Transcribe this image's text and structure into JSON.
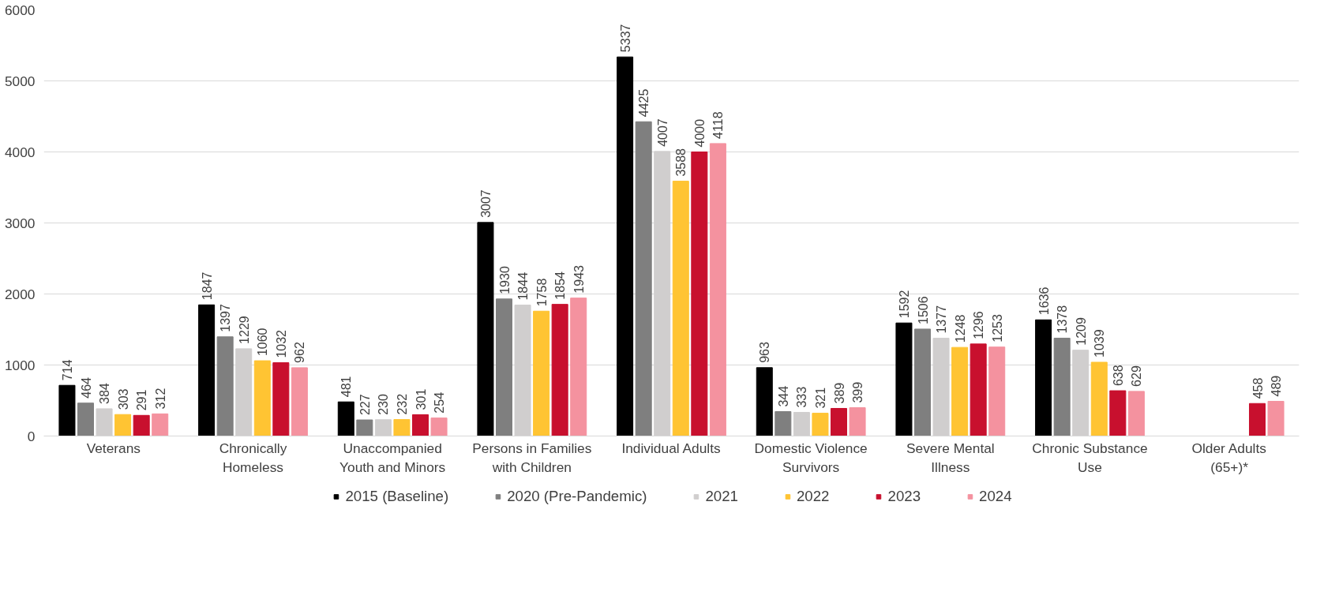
{
  "chart_data": {
    "type": "bar",
    "categories": [
      "Veterans",
      "Chronically\nHomeless",
      "Unaccompanied\nYouth and Minors",
      "Persons in Families\nwith Children",
      "Individual Adults",
      "Domestic Violence\nSurvivors",
      "Severe Mental\nIllness",
      "Chronic Substance\nUse",
      "Older Adults\n(65+)*"
    ],
    "series": [
      {
        "name": "2015 (Baseline)",
        "color": "#000000",
        "values": [
          714,
          1847,
          481,
          3007,
          5337,
          963,
          1592,
          1636,
          null
        ]
      },
      {
        "name": "2020 (Pre-Pandemic)",
        "color": "#7f7f7f",
        "values": [
          464,
          1397,
          227,
          1930,
          4425,
          344,
          1506,
          1378,
          null
        ]
      },
      {
        "name": "2021",
        "color": "#d0cece",
        "values": [
          384,
          1229,
          230,
          1844,
          4007,
          333,
          1377,
          1209,
          null
        ]
      },
      {
        "name": "2022",
        "color": "#ffc433",
        "values": [
          303,
          1060,
          232,
          1758,
          3588,
          321,
          1248,
          1039,
          null
        ]
      },
      {
        "name": "2023",
        "color": "#c8102e",
        "values": [
          291,
          1032,
          301,
          1854,
          4000,
          389,
          1296,
          638,
          458
        ]
      },
      {
        "name": "2024",
        "color": "#f4929f",
        "values": [
          312,
          962,
          254,
          1943,
          4118,
          399,
          1253,
          629,
          489
        ]
      }
    ],
    "ylim": [
      0,
      6000
    ],
    "yticks": [
      0,
      1000,
      2000,
      3000,
      4000,
      5000,
      6000
    ],
    "grid": "y",
    "legend": "bottom",
    "data_labels": true
  }
}
